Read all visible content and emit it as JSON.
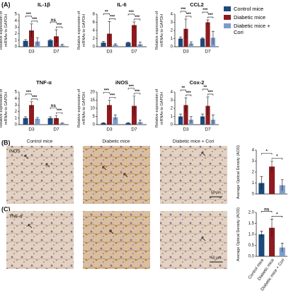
{
  "figure": {
    "panel_labels": [
      "(A)",
      "(B)",
      "(C)"
    ],
    "image_column_titles": [
      "Control mice",
      "Diabetic mice",
      "Diabetic mice + Cori"
    ],
    "image_row_labels": [
      "iNOS",
      "TNF-α"
    ],
    "scale_bar": "50 μm"
  },
  "chart_data": [
    {
      "type": "bar",
      "title": "IL-1β",
      "ylabel": "Relative expression of mRNAs to GAPDH",
      "categories": [
        "D3",
        "D7"
      ],
      "legend": "right",
      "series": [
        {
          "name": "Control mice",
          "color": "#1d4a7e",
          "values": [
            0.9,
            1.0
          ],
          "errors": [
            0.2,
            0.1
          ]
        },
        {
          "name": "Diabetic mice",
          "color": "#8e1b1f",
          "values": [
            2.5,
            1.6
          ],
          "errors": [
            1.0,
            1.0
          ]
        },
        {
          "name": "Diabetic mice + Cori",
          "color": "#7d9ccb",
          "values": [
            0.8,
            0.2
          ],
          "errors": [
            0.6,
            0.2
          ]
        }
      ],
      "ylim": [
        0,
        5
      ],
      "yticks": [
        0,
        1,
        2,
        3,
        4,
        5
      ],
      "annotations": [
        [
          "***",
          "***"
        ],
        [
          "ns",
          "***"
        ]
      ]
    },
    {
      "type": "bar",
      "title": "IL-6",
      "ylabel": "Relative expression of mRNAs to GAPDH",
      "categories": [
        "D3",
        "D7"
      ],
      "series": [
        {
          "color": "#1d4a7e",
          "values": [
            1.0,
            1.0
          ],
          "errors": [
            0.3,
            0.1
          ]
        },
        {
          "color": "#8e1b1f",
          "values": [
            3.2,
            5.3
          ],
          "errors": [
            3.0,
            0.8
          ]
        },
        {
          "color": "#7d9ccb",
          "values": [
            0.5,
            0.6
          ],
          "errors": [
            0.2,
            0.5
          ]
        }
      ],
      "ylim": [
        0,
        8
      ],
      "yticks": [
        0,
        2,
        4,
        6,
        8
      ],
      "annotations": [
        [
          "**",
          "***"
        ],
        [
          "***",
          "***"
        ]
      ]
    },
    {
      "type": "bar",
      "title": "CCL2",
      "ylabel": "Relative expression of mRNAs to GAPDH",
      "categories": [
        "D3",
        "D7"
      ],
      "series": [
        {
          "color": "#1d4a7e",
          "values": [
            1.0,
            1.0
          ],
          "errors": [
            0.2,
            0.1
          ]
        },
        {
          "color": "#8e1b1f",
          "values": [
            2.2,
            3.0
          ],
          "errors": [
            1.2,
            0.3
          ]
        },
        {
          "color": "#7d9ccb",
          "values": [
            0.4,
            1.1
          ],
          "errors": [
            0.2,
            0.8
          ]
        }
      ],
      "ylim": [
        0,
        4
      ],
      "yticks": [
        0,
        1,
        2,
        3,
        4
      ],
      "annotations": [
        [
          "***",
          "***"
        ],
        [
          "***",
          "***"
        ]
      ]
    },
    {
      "type": "bar",
      "title": "TNF-α",
      "ylabel": "Relative expression of mRNAs to GAPDH",
      "categories": [
        "D3",
        "D7"
      ],
      "series": [
        {
          "color": "#1d4a7e",
          "values": [
            1.0,
            1.0
          ],
          "errors": [
            0.2,
            0.2
          ]
        },
        {
          "color": "#8e1b1f",
          "values": [
            3.0,
            1.0
          ],
          "errors": [
            0.5,
            0.4
          ]
        },
        {
          "color": "#7d9ccb",
          "values": [
            0.9,
            0.2
          ],
          "errors": [
            0.2,
            0.1
          ]
        }
      ],
      "ylim": [
        0,
        5
      ],
      "yticks": [
        0,
        1,
        2,
        3,
        4,
        5
      ],
      "annotations": [
        [
          "***",
          "***"
        ],
        [
          "ns",
          "***"
        ]
      ]
    },
    {
      "type": "bar",
      "title": "iNOS",
      "ylabel": "Relative expression of mRNAs to GAPDH",
      "categories": [
        "D3",
        "D7"
      ],
      "series": [
        {
          "color": "#1d4a7e",
          "values": [
            1.0,
            1.0
          ],
          "errors": [
            0.2,
            0.3
          ]
        },
        {
          "color": "#8e1b1f",
          "values": [
            12,
            11.5
          ],
          "errors": [
            3,
            6
          ]
        },
        {
          "color": "#7d9ccb",
          "values": [
            4.5,
            1.5
          ],
          "errors": [
            1.5,
            1.2
          ]
        }
      ],
      "ylim": [
        0,
        20
      ],
      "yticks": [
        0,
        5,
        10,
        15,
        20
      ],
      "annotations": [
        [
          "***",
          "***"
        ],
        [
          "***",
          "***"
        ]
      ]
    },
    {
      "type": "bar",
      "title": "Cox-2",
      "ylabel": "Relative expression of mRNAs to GAPDH",
      "categories": [
        "D3",
        "D7"
      ],
      "series": [
        {
          "color": "#1d4a7e",
          "values": [
            1.0,
            1.0
          ],
          "errors": [
            0.3,
            0.3
          ]
        },
        {
          "color": "#8e1b1f",
          "values": [
            2.4,
            2.3
          ],
          "errors": [
            0.9,
            1.1
          ]
        },
        {
          "color": "#7d9ccb",
          "values": [
            0.6,
            0.6
          ],
          "errors": [
            0.4,
            0.6
          ]
        }
      ],
      "ylim": [
        0,
        4
      ],
      "yticks": [
        0,
        1,
        2,
        3,
        4
      ],
      "annotations": [
        [
          "**",
          "***"
        ],
        [
          "**",
          "***"
        ]
      ]
    },
    {
      "type": "bar",
      "ylabel": "Average Optical Density (AOD)",
      "values": [
        1.0,
        2.5,
        0.8
      ],
      "errors": [
        0.6,
        0.5,
        0.5
      ],
      "colors": [
        "#1d4a7e",
        "#8e1b1f",
        "#7d9ccb"
      ],
      "ylim": [
        0,
        4
      ],
      "yticks": [
        0,
        1,
        2,
        3,
        4
      ],
      "annotations": [
        "*",
        "*"
      ]
    },
    {
      "type": "bar",
      "ylabel": "Average Optical Density (AOD)",
      "categories": [
        "Control mice",
        "Diabetic mice",
        "Diabetic mice + Cori"
      ],
      "values": [
        1.0,
        1.3,
        0.4
      ],
      "errors": [
        0.15,
        0.4,
        0.2
      ],
      "colors": [
        "#1d4a7e",
        "#8e1b1f",
        "#7d9ccb"
      ],
      "ylim": [
        0,
        2
      ],
      "yticks": [
        {
          "value": 0,
          "label": "0.0"
        },
        {
          "value": 0.5,
          "label": "0.5"
        },
        {
          "value": 1,
          "label": "1.0"
        },
        {
          "value": 1.5,
          "label": "1.5"
        },
        {
          "value": 2,
          "label": "2.0"
        }
      ],
      "annotations": [
        "ns",
        "*"
      ]
    }
  ]
}
